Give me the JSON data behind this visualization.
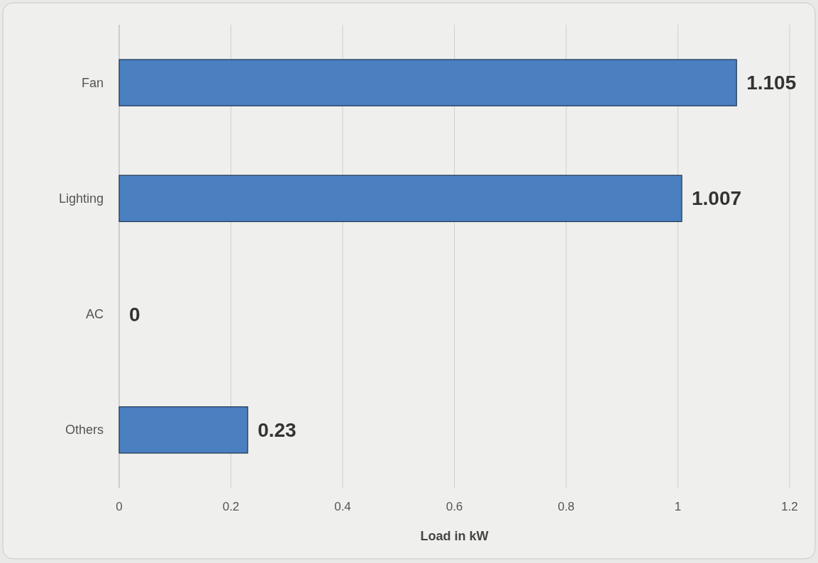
{
  "chart_data": {
    "type": "bar",
    "orientation": "horizontal",
    "xlabel": "Load in kW",
    "categories": [
      "Fan",
      "Lighting",
      "AC",
      "Others"
    ],
    "values": [
      1.105,
      1.007,
      0,
      0.23
    ],
    "color": "#4a7fc0",
    "xlim": [
      0,
      1.2
    ],
    "xticks": [
      0,
      0.2,
      0.4,
      0.6,
      0.8,
      1,
      1.2
    ],
    "grid": "x",
    "data_labels": true
  }
}
